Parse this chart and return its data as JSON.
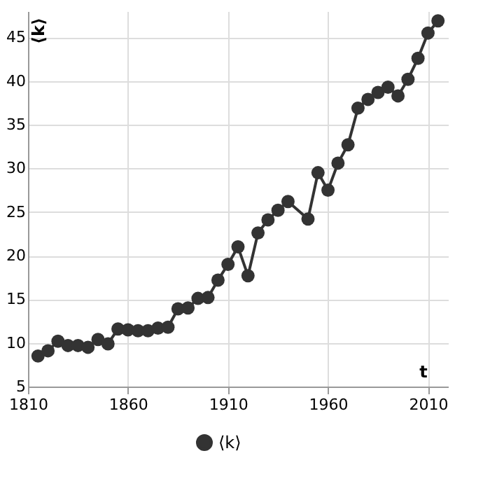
{
  "chart_data": {
    "type": "line",
    "xlabel": "t",
    "ylabel": "⟨k⟩",
    "x": [
      1815,
      1820,
      1825,
      1830,
      1835,
      1840,
      1845,
      1850,
      1855,
      1860,
      1865,
      1870,
      1875,
      1880,
      1885,
      1890,
      1895,
      1900,
      1905,
      1910,
      1915,
      1920,
      1925,
      1930,
      1935,
      1940,
      1950,
      1955,
      1960,
      1965,
      1970,
      1975,
      1980,
      1985,
      1990,
      1995,
      2000,
      2005,
      2010,
      2015
    ],
    "series": [
      {
        "name": "⟨k⟩",
        "color": "#333333",
        "values": [
          8.5,
          9.1,
          10.2,
          9.7,
          9.7,
          9.5,
          10.4,
          9.9,
          11.6,
          11.5,
          11.4,
          11.4,
          11.7,
          11.8,
          13.9,
          14.0,
          15.1,
          15.2,
          17.2,
          19.0,
          21.0,
          17.7,
          22.6,
          24.1,
          25.2,
          26.2,
          24.2,
          29.5,
          27.5,
          30.6,
          32.7,
          36.9,
          37.9,
          38.7,
          39.3,
          38.3,
          40.2,
          42.6,
          45.5,
          46.9
        ]
      }
    ],
    "xlim": [
      1810,
      2020
    ],
    "xticks": [
      1810,
      1860,
      1910,
      1960,
      2010
    ],
    "ylim": [
      5,
      48
    ],
    "yticks": [
      5,
      10,
      15,
      20,
      25,
      30,
      35,
      40,
      45
    ],
    "grid": true,
    "legend": "bottom",
    "marker": "circle",
    "line_style": "solid"
  }
}
